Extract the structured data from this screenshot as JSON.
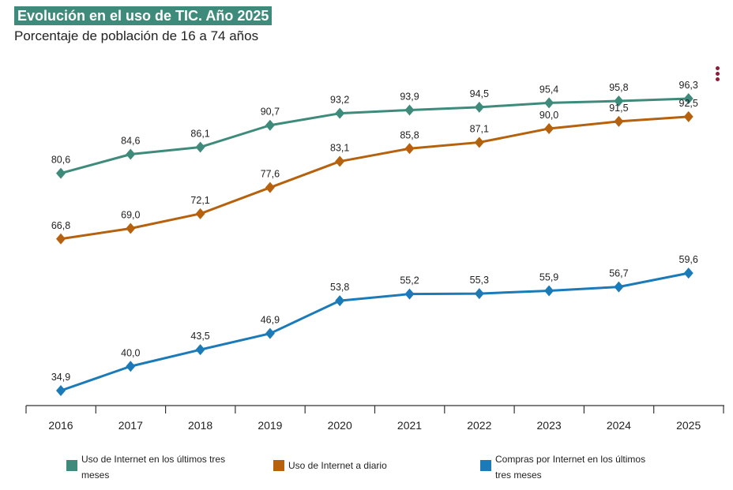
{
  "title": "Evolución en el uso de TIC. Año 2025",
  "subtitle": "Porcentaje de población de 16 a 74 años",
  "chart_data": {
    "type": "line",
    "title": "Evolución en el uso de TIC. Año 2025",
    "subtitle": "Porcentaje de población de 16 a 74 años",
    "xlabel": "",
    "ylabel": "",
    "categories": [
      "2016",
      "2017",
      "2018",
      "2019",
      "2020",
      "2021",
      "2022",
      "2023",
      "2024",
      "2025"
    ],
    "ylim": [
      30,
      100
    ],
    "grid": false,
    "legend_position": "bottom",
    "series": [
      {
        "name": "Uso de Internet en los últimos tres meses",
        "color": "#3f8b7b",
        "values": [
          80.6,
          84.6,
          86.1,
          90.7,
          93.2,
          93.9,
          94.5,
          95.4,
          95.8,
          96.3
        ],
        "labels": [
          "80,6",
          "84,6",
          "86,1",
          "90,7",
          "93,2",
          "93,9",
          "94,5",
          "95,4",
          "95,8",
          "96,3"
        ]
      },
      {
        "name": "Uso de Internet a diario",
        "color": "#b5610d",
        "values": [
          66.8,
          69.0,
          72.1,
          77.6,
          83.1,
          85.8,
          87.1,
          90.0,
          91.5,
          92.5
        ],
        "labels": [
          "66,8",
          "69,0",
          "72,1",
          "77,6",
          "83,1",
          "85,8",
          "87,1",
          "90,0",
          "91,5",
          "92,5"
        ]
      },
      {
        "name": "Compras por Internet en los últimos tres meses",
        "color": "#1b7ab8",
        "values": [
          34.9,
          40.0,
          43.5,
          46.9,
          53.8,
          55.2,
          55.3,
          55.9,
          56.7,
          59.6
        ],
        "labels": [
          "34,9",
          "40,0",
          "43,5",
          "46,9",
          "53,8",
          "55,2",
          "55,3",
          "55,9",
          "56,7",
          "59,6"
        ]
      }
    ]
  },
  "legend": [
    {
      "line1": "Uso de Internet en los últimos tres",
      "line2": "meses",
      "color": "#3f8b7b"
    },
    {
      "line1": "Uso de Internet a diario",
      "line2": "",
      "color": "#b5610d"
    },
    {
      "line1": "Compras por Internet en los últimos",
      "line2": "tres meses",
      "color": "#1b7ab8"
    }
  ],
  "menu_icon": "more-vertical-icon"
}
